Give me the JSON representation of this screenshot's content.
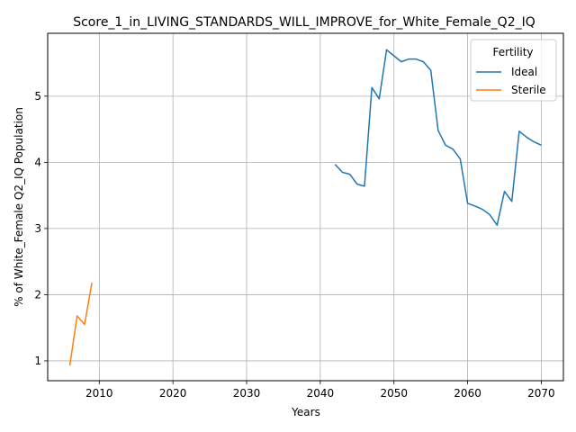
{
  "chart_data": {
    "type": "line",
    "title": "Score_1_in_LIVING_STANDARDS_WILL_IMPROVE_for_White_Female_Q2_IQ",
    "xlabel": "Years",
    "ylabel": "% of White_Female Q2_IQ Population",
    "xlim": [
      2003,
      2073
    ],
    "ylim": [
      0.7,
      5.95
    ],
    "xticks": [
      2010,
      2020,
      2030,
      2040,
      2050,
      2060,
      2070
    ],
    "yticks": [
      1,
      2,
      3,
      4,
      5
    ],
    "grid": true,
    "legend": {
      "title": "Fertility",
      "placement": "top-right"
    },
    "series": [
      {
        "name": "Ideal",
        "color": "#1f77b4",
        "x": [
          2042,
          2043,
          2044,
          2045,
          2046,
          2047,
          2048,
          2049,
          2050,
          2051,
          2052,
          2053,
          2054,
          2055,
          2056,
          2057,
          2058,
          2059,
          2060,
          2061,
          2062,
          2063,
          2064,
          2065,
          2066,
          2067,
          2068,
          2069,
          2070
        ],
        "y": [
          3.97,
          3.85,
          3.82,
          3.67,
          3.64,
          5.13,
          4.96,
          5.7,
          5.61,
          5.52,
          5.56,
          5.56,
          5.52,
          5.39,
          4.48,
          4.26,
          4.2,
          4.05,
          3.38,
          3.34,
          3.29,
          3.21,
          3.05,
          3.56,
          3.41,
          4.47,
          4.38,
          4.31,
          4.26
        ]
      },
      {
        "name": "Sterile",
        "color": "#ff7f0e",
        "x": [
          2006,
          2007,
          2008,
          2009
        ],
        "y": [
          0.93,
          1.68,
          1.55,
          2.18
        ]
      }
    ]
  }
}
